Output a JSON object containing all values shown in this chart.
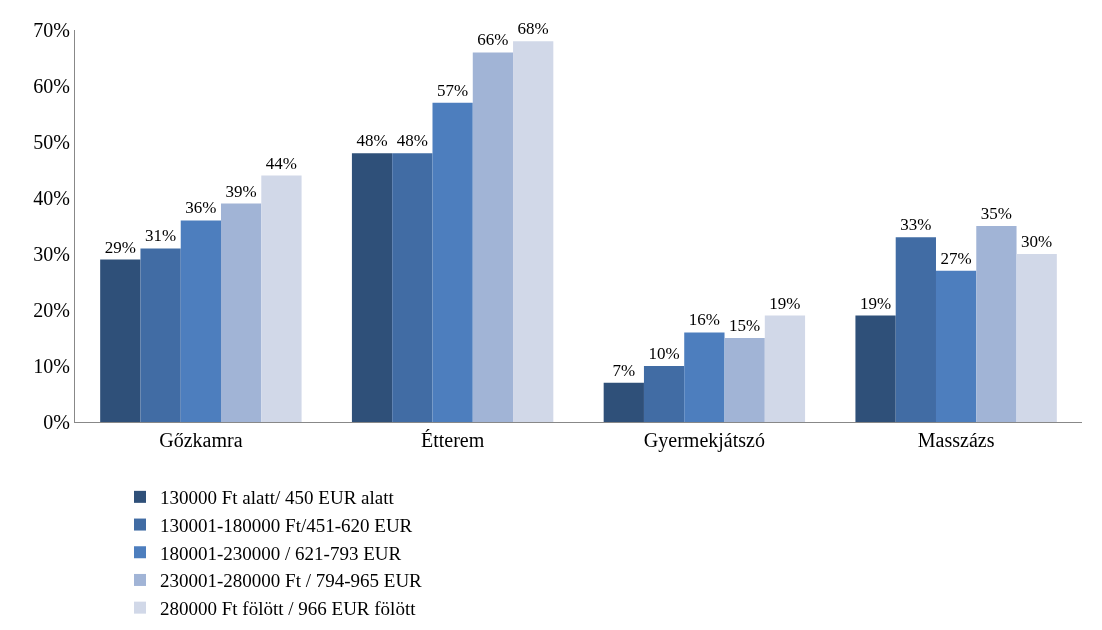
{
  "chart_data": {
    "type": "bar",
    "categories": [
      "Gőzkamra",
      "Étterem",
      "Gyermekjátszó",
      "Masszázs"
    ],
    "series": [
      {
        "name": "130000 Ft alatt/ 450 EUR alatt",
        "color": "#2f5079",
        "values": [
          29,
          48,
          7,
          19
        ],
        "value_labels": [
          "29%",
          "48%",
          "7%",
          "19%"
        ]
      },
      {
        "name": "130001-180000 Ft/451-620 EUR",
        "color": "#416ca4",
        "values": [
          31,
          48,
          10,
          33
        ],
        "value_labels": [
          "31%",
          "48%",
          "10%",
          "33%"
        ]
      },
      {
        "name": "180001-230000 / 621-793 EUR",
        "color": "#4d7ebe",
        "values": [
          36,
          57,
          16,
          27
        ],
        "value_labels": [
          "36%",
          "57%",
          "16%",
          "27%"
        ]
      },
      {
        "name": "230001-280000 Ft / 794-965 EUR",
        "color": "#a1b4d6",
        "values": [
          39,
          66,
          15,
          35
        ],
        "value_labels": [
          "39%",
          "66%",
          "15%",
          "35%"
        ]
      },
      {
        "name": "280000 Ft fölött / 966 EUR fölött",
        "color": "#d1d8e8",
        "values": [
          44,
          68,
          19,
          30
        ],
        "value_labels": [
          "44%",
          "68%",
          "19%",
          "30%"
        ]
      }
    ],
    "ylim": [
      0,
      70
    ],
    "yticks": [
      {
        "value": 0,
        "label": "0%"
      },
      {
        "value": 10,
        "label": "10%"
      },
      {
        "value": 20,
        "label": "20%"
      },
      {
        "value": 30,
        "label": "30%"
      },
      {
        "value": 40,
        "label": "40%"
      },
      {
        "value": 50,
        "label": "50%"
      },
      {
        "value": 60,
        "label": "60%"
      },
      {
        "value": 70,
        "label": "70%"
      }
    ],
    "grid": false,
    "legend": "bottom"
  }
}
